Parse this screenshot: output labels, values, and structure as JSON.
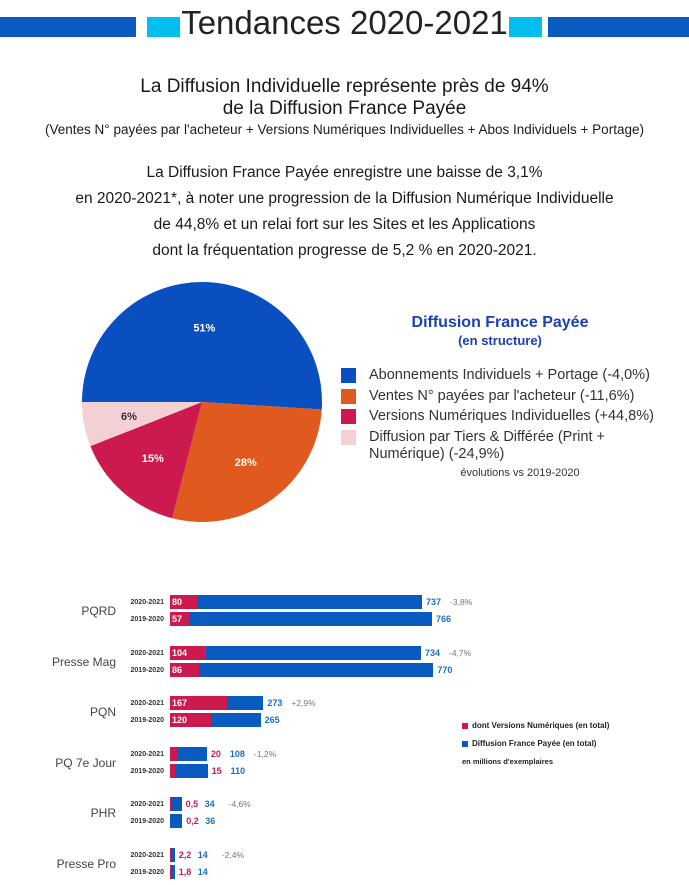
{
  "header": {
    "title": "Tendances 2020-2021"
  },
  "headline": {
    "line1": "La Diffusion Individuelle représente près de 94%",
    "line2": "de la Diffusion France Payée"
  },
  "subtitle": "(Ventes N° payées par l'acheteur + Versions Numériques Individuelles + Abos Individuels + Portage)",
  "paragraph": [
    "La Diffusion France Payée enregistre une baisse de 3,1%",
    "en 2020-2021*, à noter une progression de la Diffusion Numérique Individuelle",
    "de 44,8% et un relai fort sur les Sites et les Applications",
    "dont la fréquentation progresse de 5,2 % en 2020-2021."
  ],
  "chart_data": [
    {
      "type": "pie",
      "title": "Diffusion France Payée",
      "subtitle": "(en structure)",
      "note": "évolutions vs 2019-2020",
      "slices": [
        {
          "name": "Abonnements Individuels + Portage (-4,0%)",
          "value": 51,
          "label": "51%",
          "color": "#0a4fbf"
        },
        {
          "name": "Ventes N° payées par l'acheteur (-11,6%)",
          "value": 28,
          "label": "28%",
          "color": "#e05a20"
        },
        {
          "name": "Versions Numériques Individuelles (+44,8%)",
          "value": 15,
          "label": "15%",
          "color": "#cc1a4f"
        },
        {
          "name": "Diffusion par Tiers & Différée (Print + Numérique) (-24,9%)",
          "value": 6,
          "label": "6%",
          "color": "#f2d0d4"
        }
      ],
      "legend": "right"
    },
    {
      "type": "bar",
      "orientation": "horizontal",
      "unit": "en millions d'exemplaires",
      "legend": [
        "dont Versions Numériques (en total)",
        "Diffusion France Payée (en total)"
      ],
      "colors": {
        "digital": "#cc1a4f",
        "total": "#0a5bbf",
        "total_label": "#1a6fc4",
        "change": "#777777"
      },
      "groups": [
        {
          "category": "PQRD",
          "change": "-3,8%",
          "rows": [
            {
              "year": "2020-2021",
              "digital": 80,
              "digital_label": "80",
              "total": 737,
              "total_label": "737"
            },
            {
              "year": "2019-2020",
              "digital": 57,
              "digital_label": "57",
              "total": 766,
              "total_label": "766"
            }
          ]
        },
        {
          "category": "Presse Mag",
          "change": "-4,7%",
          "rows": [
            {
              "year": "2020-2021",
              "digital": 104,
              "digital_label": "104",
              "total": 734,
              "total_label": "734"
            },
            {
              "year": "2019-2020",
              "digital": 86,
              "digital_label": "86",
              "total": 770,
              "total_label": "770"
            }
          ]
        },
        {
          "category": "PQN",
          "change": "+2,9%",
          "rows": [
            {
              "year": "2020-2021",
              "digital": 167,
              "digital_label": "167",
              "total": 273,
              "total_label": "273"
            },
            {
              "year": "2019-2020",
              "digital": 120,
              "digital_label": "120",
              "total": 265,
              "total_label": "265"
            }
          ]
        },
        {
          "category": "PQ 7e Jour",
          "change": "-1,2%",
          "rows": [
            {
              "year": "2020-2021",
              "digital": 20,
              "digital_label": "20",
              "total": 108,
              "total_label": "108"
            },
            {
              "year": "2019-2020",
              "digital": 15,
              "digital_label": "15",
              "total": 110,
              "total_label": "110"
            }
          ]
        },
        {
          "category": "PHR",
          "change": "-4,6%",
          "rows": [
            {
              "year": "2020-2021",
              "digital": 0.5,
              "digital_label": "0,5",
              "total": 34,
              "total_label": "34"
            },
            {
              "year": "2019-2020",
              "digital": 0.2,
              "digital_label": "0,2",
              "total": 36,
              "total_label": "36"
            }
          ]
        },
        {
          "category": "Presse Pro",
          "change": "-2,4%",
          "rows": [
            {
              "year": "2020-2021",
              "digital": 2.2,
              "digital_label": "2,2",
              "total": 14,
              "total_label": "14"
            },
            {
              "year": "2019-2020",
              "digital": 1.8,
              "digital_label": "1,8",
              "total": 14,
              "total_label": "14"
            }
          ]
        }
      ]
    }
  ]
}
